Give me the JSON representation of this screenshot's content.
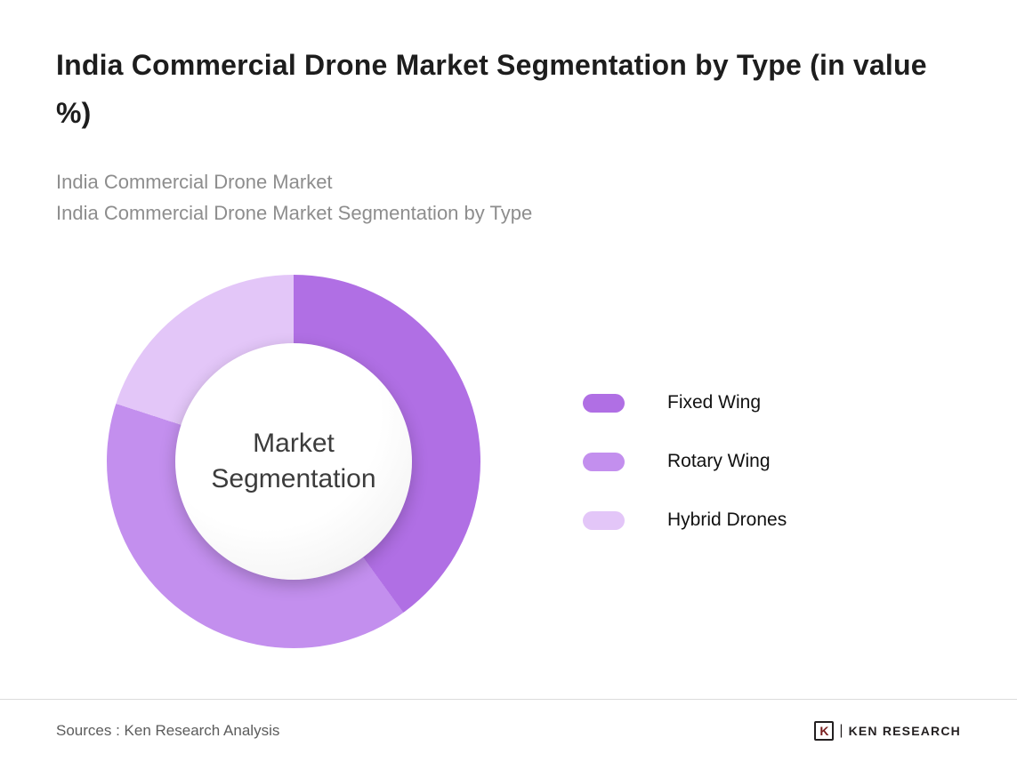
{
  "header": {
    "title": "India Commercial Drone Market Segmentation by Type (in value %)",
    "subtitle_line1": "India Commercial Drone Market",
    "subtitle_line2": "India Commercial Drone Market Segmentation by Type"
  },
  "chart_data": {
    "type": "pie",
    "donut": true,
    "title": "India Commercial Drone Market Segmentation by Type (in value %)",
    "center_label": "Market Segmentation",
    "start_angle_deg": 0,
    "direction": "clockwise",
    "labels_shown": false,
    "legend_position": "right",
    "series": [
      {
        "name": "Fixed Wing",
        "value": 40,
        "color": "#b06fe4"
      },
      {
        "name": "Rotary Wing",
        "value": 40,
        "color": "#c38fee"
      },
      {
        "name": "Hybrid Drones",
        "value": 20,
        "color": "#e3c6f8"
      }
    ]
  },
  "footer": {
    "sources": "Sources : Ken Research Analysis",
    "logo_mark": "K",
    "logo_separator": "|",
    "logo_text": "KEN RESEARCH"
  }
}
